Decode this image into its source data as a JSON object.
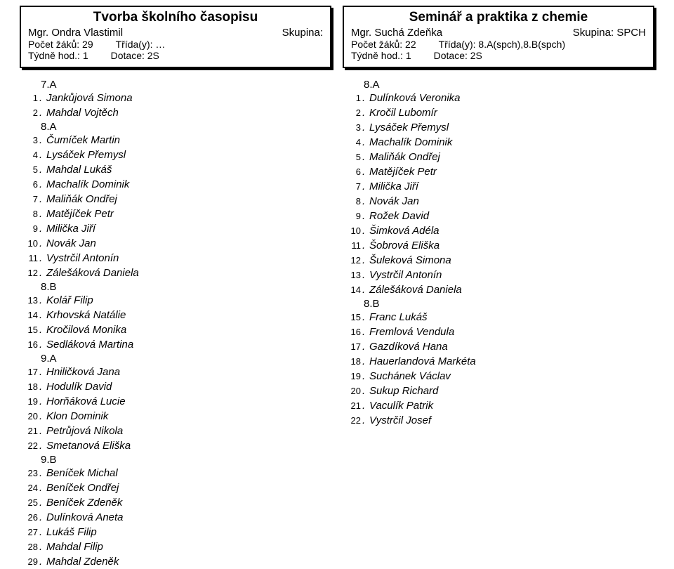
{
  "left": {
    "title": "Tvorba školního časopisu",
    "teacher": "Mgr. Ondra Vlastimil",
    "group_label": "Skupina:",
    "group_value": "",
    "count_label": "Počet žáků:",
    "count_value": "29",
    "class_label": "Třída(y):",
    "class_value": "…",
    "weekly_label": "Týdně hod.:",
    "weekly_value": "1",
    "dotace_label": "Dotace:",
    "dotace_value": "2S",
    "entries": [
      {
        "type": "group",
        "label": "7.A"
      },
      {
        "type": "student",
        "n": "1",
        "name": "Jankůjová Simona"
      },
      {
        "type": "student",
        "n": "2",
        "name": "Mahdal Vojtěch"
      },
      {
        "type": "group",
        "label": "8.A"
      },
      {
        "type": "student",
        "n": "3",
        "name": "Čumíček Martin"
      },
      {
        "type": "student",
        "n": "4",
        "name": "Lysáček Přemysl"
      },
      {
        "type": "student",
        "n": "5",
        "name": "Mahdal Lukáš"
      },
      {
        "type": "student",
        "n": "6",
        "name": "Machalík Dominik"
      },
      {
        "type": "student",
        "n": "7",
        "name": "Maliňák Ondřej"
      },
      {
        "type": "student",
        "n": "8",
        "name": "Matějíček Petr"
      },
      {
        "type": "student",
        "n": "9",
        "name": "Milička Jiří"
      },
      {
        "type": "student",
        "n": "10",
        "name": "Novák Jan"
      },
      {
        "type": "student",
        "n": "11",
        "name": "Vystrčil Antonín"
      },
      {
        "type": "student",
        "n": "12",
        "name": "Zálešáková Daniela"
      },
      {
        "type": "group",
        "label": "8.B"
      },
      {
        "type": "student",
        "n": "13",
        "name": "Kolář Filip"
      },
      {
        "type": "student",
        "n": "14",
        "name": "Krhovská Natálie"
      },
      {
        "type": "student",
        "n": "15",
        "name": "Kročilová Monika"
      },
      {
        "type": "student",
        "n": "16",
        "name": "Sedláková Martina"
      },
      {
        "type": "group",
        "label": "9.A"
      },
      {
        "type": "student",
        "n": "17",
        "name": "Hniličková Jana"
      },
      {
        "type": "student",
        "n": "18",
        "name": "Hodulík David"
      },
      {
        "type": "student",
        "n": "19",
        "name": "Horňáková Lucie"
      },
      {
        "type": "student",
        "n": "20",
        "name": "Klon Dominik"
      },
      {
        "type": "student",
        "n": "21",
        "name": "Petrůjová Nikola"
      },
      {
        "type": "student",
        "n": "22",
        "name": "Smetanová Eliška"
      },
      {
        "type": "group",
        "label": "9.B"
      },
      {
        "type": "student",
        "n": "23",
        "name": "Beníček Michal"
      },
      {
        "type": "student",
        "n": "24",
        "name": "Beníček Ondřej"
      },
      {
        "type": "student",
        "n": "25",
        "name": "Beníček Zdeněk"
      },
      {
        "type": "student",
        "n": "26",
        "name": "Dulínková Aneta"
      },
      {
        "type": "student",
        "n": "27",
        "name": "Lukáš Filip"
      },
      {
        "type": "student",
        "n": "28",
        "name": "Mahdal Filip"
      },
      {
        "type": "student",
        "n": "29",
        "name": "Mahdal Zdeněk"
      }
    ]
  },
  "right": {
    "title": "Seminář a praktika z chemie",
    "teacher": "Mgr. Suchá Zdeňka",
    "group_label": "Skupina:",
    "group_value": "SPCH",
    "count_label": "Počet žáků:",
    "count_value": "22",
    "class_label": "Třída(y):",
    "class_value": "8.A(spch),8.B(spch)",
    "weekly_label": "Týdně hod.:",
    "weekly_value": "1",
    "dotace_label": "Dotace:",
    "dotace_value": "2S",
    "entries": [
      {
        "type": "group",
        "label": "8.A"
      },
      {
        "type": "student",
        "n": "1",
        "name": "Dulínková Veronika"
      },
      {
        "type": "student",
        "n": "2",
        "name": "Kročil Lubomír"
      },
      {
        "type": "student",
        "n": "3",
        "name": "Lysáček Přemysl"
      },
      {
        "type": "student",
        "n": "4",
        "name": "Machalík Dominik"
      },
      {
        "type": "student",
        "n": "5",
        "name": "Maliňák Ondřej"
      },
      {
        "type": "student",
        "n": "6",
        "name": "Matějíček Petr"
      },
      {
        "type": "student",
        "n": "7",
        "name": "Milička Jiří"
      },
      {
        "type": "student",
        "n": "8",
        "name": "Novák Jan"
      },
      {
        "type": "student",
        "n": "9",
        "name": "Rožek David"
      },
      {
        "type": "student",
        "n": "10",
        "name": "Šimková Adéla"
      },
      {
        "type": "student",
        "n": "11",
        "name": "Šobrová Eliška"
      },
      {
        "type": "student",
        "n": "12",
        "name": "Šuleková Simona"
      },
      {
        "type": "student",
        "n": "13",
        "name": "Vystrčil Antonín"
      },
      {
        "type": "student",
        "n": "14",
        "name": "Zálešáková Daniela"
      },
      {
        "type": "group",
        "label": "8.B"
      },
      {
        "type": "student",
        "n": "15",
        "name": "Franc Lukáš"
      },
      {
        "type": "student",
        "n": "16",
        "name": "Fremlová Vendula"
      },
      {
        "type": "student",
        "n": "17",
        "name": "Gazdíková Hana"
      },
      {
        "type": "student",
        "n": "18",
        "name": "Hauerlandová Markéta"
      },
      {
        "type": "student",
        "n": "19",
        "name": "Suchánek Václav"
      },
      {
        "type": "student",
        "n": "20",
        "name": "Sukup Richard"
      },
      {
        "type": "student",
        "n": "21",
        "name": "Vaculík Patrik"
      },
      {
        "type": "student",
        "n": "22",
        "name": "Vystrčil Josef"
      }
    ]
  }
}
